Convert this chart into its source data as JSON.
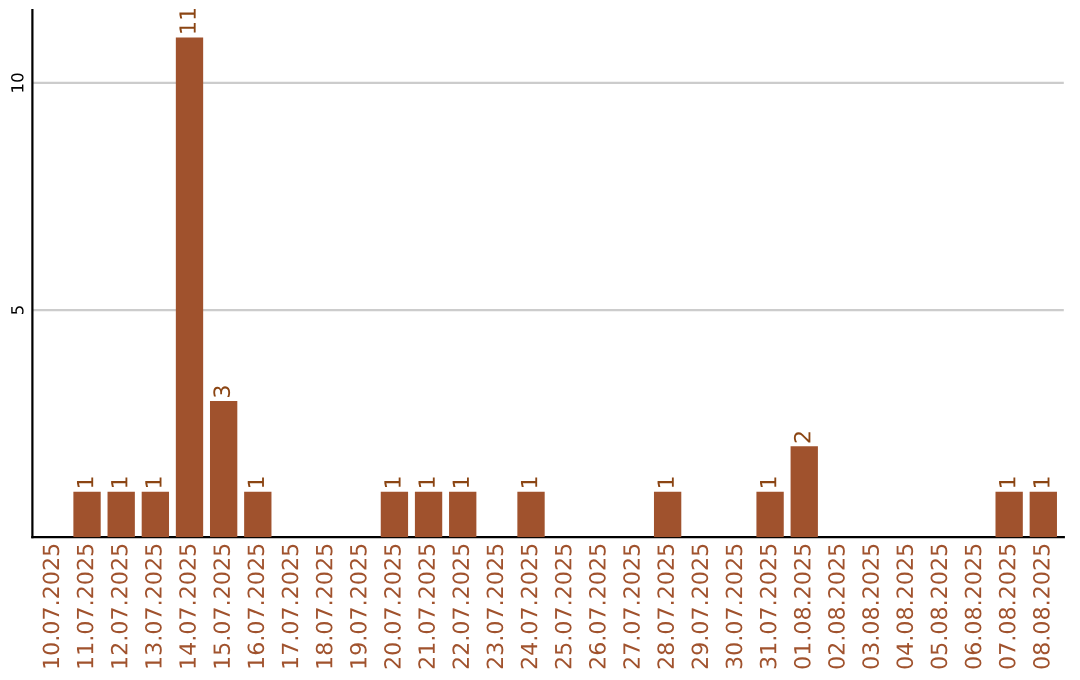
{
  "chart_data": {
    "type": "bar",
    "categories": [
      "10.07.2025",
      "11.07.2025",
      "12.07.2025",
      "13.07.2025",
      "14.07.2025",
      "15.07.2025",
      "16.07.2025",
      "17.07.2025",
      "18.07.2025",
      "19.07.2025",
      "20.07.2025",
      "21.07.2025",
      "22.07.2025",
      "23.07.2025",
      "24.07.2025",
      "25.07.2025",
      "26.07.2025",
      "27.07.2025",
      "28.07.2025",
      "29.07.2025",
      "30.07.2025",
      "31.07.2025",
      "01.08.2025",
      "02.08.2025",
      "03.08.2025",
      "04.08.2025",
      "05.08.2025",
      "06.08.2025",
      "07.08.2025",
      "08.08.2025"
    ],
    "values": [
      0,
      1,
      1,
      1,
      11,
      3,
      1,
      0,
      0,
      0,
      1,
      1,
      1,
      0,
      1,
      0,
      0,
      0,
      1,
      0,
      0,
      1,
      2,
      0,
      0,
      0,
      0,
      0,
      1,
      1
    ],
    "value_labels": [
      null,
      "1",
      "1",
      "1",
      "11",
      "3",
      "1",
      null,
      null,
      null,
      "1",
      "1",
      "1",
      null,
      "1",
      null,
      null,
      null,
      "1",
      null,
      null,
      "1",
      "2",
      null,
      null,
      null,
      null,
      null,
      "1",
      "1"
    ],
    "color": "#a0522d",
    "ylim": [
      0,
      11.6
    ],
    "yticks": [
      5,
      10
    ],
    "grid": "y"
  }
}
